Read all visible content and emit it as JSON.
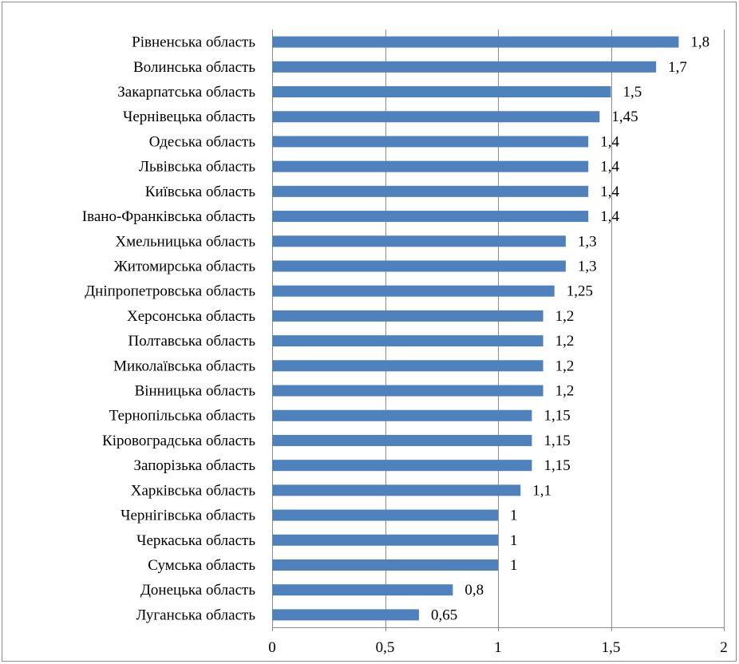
{
  "chart_data": {
    "type": "bar",
    "orientation": "horizontal",
    "title": "",
    "xlabel": "",
    "ylabel": "",
    "xlim": [
      0,
      2
    ],
    "x_ticks": [
      "0",
      "0,5",
      "1",
      "1,5",
      "2"
    ],
    "x_tick_values": [
      0,
      0.5,
      1,
      1.5,
      2
    ],
    "grid": "vertical",
    "legend": "none",
    "bar_color": "#4f81bd",
    "categories": [
      "Рівненська область",
      "Волинська область",
      "Закарпатська область",
      "Чернівецька область",
      "Одеська область",
      "Львівська область",
      "Київська область",
      "Івано-Франківська область",
      "Хмельницька область",
      "Житомирська область",
      "Дніпропетровська область",
      "Херсонська область",
      "Полтавська область",
      "Миколаївська область",
      "Вінницька область",
      "Тернопільська область",
      "Кіровоградська область",
      "Запорізька область",
      "Харківська область",
      "Чернігівська область",
      "Черкаська область",
      "Сумська область",
      "Донецька область",
      "Луганська область"
    ],
    "values": [
      1.8,
      1.7,
      1.5,
      1.45,
      1.4,
      1.4,
      1.4,
      1.4,
      1.3,
      1.3,
      1.25,
      1.2,
      1.2,
      1.2,
      1.2,
      1.15,
      1.15,
      1.15,
      1.1,
      1,
      1,
      1,
      0.8,
      0.65
    ],
    "value_labels": [
      "1,8",
      "1,7",
      "1,5",
      "1,45",
      "1,4",
      "1,4",
      "1,4",
      "1,4",
      "1,3",
      "1,3",
      "1,25",
      "1,2",
      "1,2",
      "1,2",
      "1,2",
      "1,15",
      "1,15",
      "1,15",
      "1,1",
      "1",
      "1",
      "1",
      "0,8",
      "0,65"
    ]
  }
}
